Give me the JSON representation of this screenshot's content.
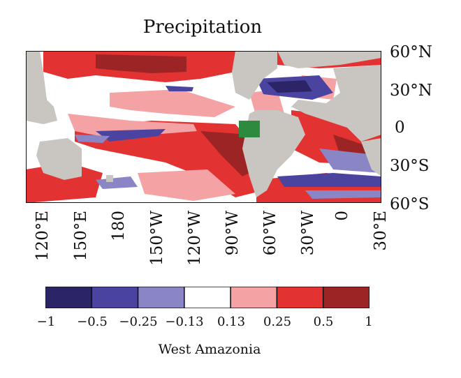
{
  "title": "Precipitation",
  "caption": "West Amazonia",
  "lat_labels": [
    "60°N",
    "30°N",
    "0",
    "30°S",
    "60°S"
  ],
  "lon_labels": [
    "120°E",
    "150°E",
    "180",
    "150°W",
    "120°W",
    "90°W",
    "60°W",
    "30°W",
    "0",
    "30°E"
  ],
  "colorbar": {
    "colors": [
      "#2b2466",
      "#4a43a0",
      "#8a86c6",
      "#ffffff",
      "#f5a2a5",
      "#e33232",
      "#9c2424"
    ],
    "tick_labels": [
      "−1",
      "−0.5",
      "−0.25",
      "−0.13",
      "0.13",
      "0.25",
      "0.5",
      "1"
    ]
  },
  "colors": {
    "land": "#c9c6c1",
    "region_box": "#2e8b3e"
  }
}
